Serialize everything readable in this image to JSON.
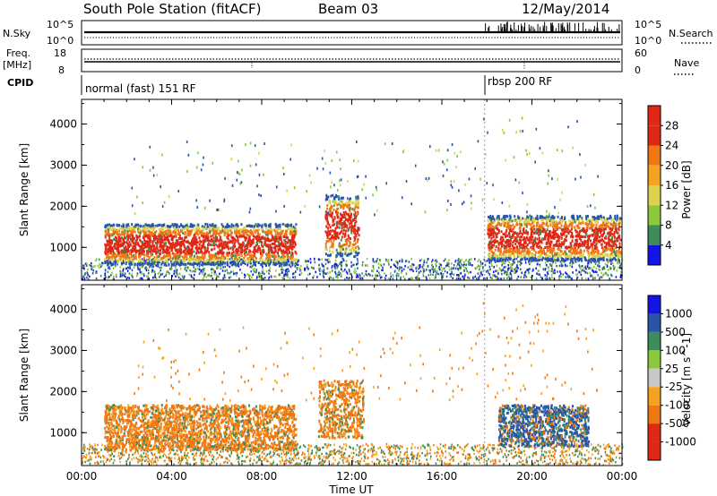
{
  "header": {
    "station": "South Pole Station (fitACF)",
    "beam": "Beam 03",
    "date": "12/May/2014"
  },
  "top_panels": {
    "nsky_label": "N.Sky",
    "nsky_ticks": [
      "10^5",
      "10^0"
    ],
    "nsearch_label": "N.Search",
    "freq_label_1": "Freq.",
    "freq_label_2": "[MHz]",
    "freq_ticks_left": [
      "18",
      "8"
    ],
    "nave_ticks_right": [
      "60",
      "0"
    ],
    "nave_label": "Nave",
    "cpid_label": "CPID",
    "cpid_segments": [
      "normal (fast) 151 RF",
      "rbsp 200 RF"
    ]
  },
  "colors": {
    "scale": [
      "#1414e6",
      "#2855a8",
      "#3d8c5a",
      "#8cc83c",
      "#dcd250",
      "#f5a31e",
      "#f07814",
      "#e02814",
      "#c8c8c8"
    ]
  },
  "chart_data": [
    {
      "type": "heatmap",
      "title": "",
      "ylabel": "Slant Range [km]",
      "xlabel": "",
      "x_ticks": [
        "00:00",
        "04:00",
        "08:00",
        "12:00",
        "16:00",
        "20:00",
        "00:00"
      ],
      "y_ticks": [
        1000,
        2000,
        3000,
        4000
      ],
      "ylim": [
        200,
        4600
      ],
      "colorbar": {
        "label": "Power [dB]",
        "ticks": [
          4,
          8,
          12,
          16,
          20,
          24,
          28
        ],
        "range": [
          0,
          32
        ]
      },
      "echo_bands": [
        {
          "t_start": 1.0,
          "t_end": 9.5,
          "range_min": 600,
          "range_max": 1600,
          "value": "24-32 dB"
        },
        {
          "t_start": 10.8,
          "t_end": 12.3,
          "range_min": 800,
          "range_max": 2300,
          "value": "20-28 dB"
        },
        {
          "t_start": 18.0,
          "t_end": 23.9,
          "range_min": 700,
          "range_max": 1800,
          "value": "16-28 dB"
        }
      ]
    },
    {
      "type": "heatmap",
      "title": "",
      "ylabel": "Slant Range [km]",
      "xlabel": "Time UT",
      "x_ticks": [
        "00:00",
        "04:00",
        "08:00",
        "12:00",
        "16:00",
        "20:00",
        "00:00"
      ],
      "y_ticks": [
        1000,
        2000,
        3000,
        4000
      ],
      "ylim": [
        200,
        4600
      ],
      "colorbar": {
        "label": "Velocity [m s^-1]",
        "ticks": [
          1000,
          500,
          100,
          25,
          -25,
          -100,
          -500,
          -1000
        ]
      },
      "echo_bands": [
        {
          "t_start": 1.0,
          "t_end": 9.5,
          "range_min": 600,
          "range_max": 1700,
          "value": "-100 to -500 m/s"
        },
        {
          "t_start": 10.5,
          "t_end": 12.5,
          "range_min": 900,
          "range_max": 2300,
          "value": "-100 to -500 m/s"
        },
        {
          "t_start": 18.5,
          "t_end": 22.5,
          "range_min": 700,
          "range_max": 1700,
          "value": "100 to 1000 m/s"
        }
      ]
    }
  ]
}
